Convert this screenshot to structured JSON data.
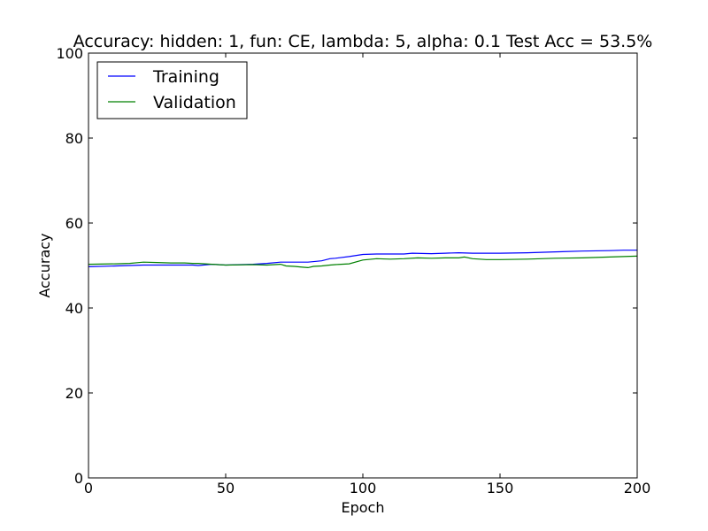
{
  "chart_data": {
    "type": "line",
    "title": "Accuracy: hidden: 1, fun: CE, lambda: 5, alpha: 0.1  Test Acc = 53.5%",
    "xlabel": "Epoch",
    "ylabel": "Accuracy",
    "xlim": [
      0,
      200
    ],
    "ylim": [
      0,
      100
    ],
    "xticks": [
      0,
      50,
      100,
      150,
      200
    ],
    "yticks": [
      0,
      20,
      40,
      60,
      80,
      100
    ],
    "grid": false,
    "legend_position": "top-left",
    "series": [
      {
        "name": "Training",
        "color": "#0000ff",
        "x": [
          0,
          10,
          20,
          30,
          38,
          40,
          45,
          50,
          60,
          65,
          70,
          75,
          80,
          85,
          88,
          90,
          95,
          100,
          105,
          110,
          115,
          118,
          125,
          130,
          135,
          140,
          150,
          160,
          170,
          180,
          190,
          195,
          200
        ],
        "y": [
          49.7,
          49.9,
          50.1,
          50.1,
          50.1,
          50.0,
          50.3,
          50.1,
          50.3,
          50.5,
          50.8,
          50.8,
          50.8,
          51.1,
          51.6,
          51.7,
          52.1,
          52.6,
          52.7,
          52.7,
          52.7,
          52.9,
          52.8,
          52.9,
          53.0,
          52.9,
          52.9,
          53.0,
          53.2,
          53.4,
          53.5,
          53.6,
          53.6
        ]
      },
      {
        "name": "Validation",
        "color": "#008000",
        "x": [
          0,
          10,
          15,
          20,
          25,
          30,
          35,
          38,
          40,
          45,
          50,
          60,
          65,
          70,
          72,
          75,
          78,
          80,
          82,
          85,
          88,
          90,
          95,
          100,
          105,
          110,
          115,
          120,
          125,
          130,
          135,
          137,
          140,
          145,
          150,
          160,
          170,
          180,
          190,
          200
        ],
        "y": [
          50.3,
          50.4,
          50.5,
          50.8,
          50.7,
          50.6,
          50.6,
          50.5,
          50.5,
          50.3,
          50.1,
          50.2,
          50.1,
          50.3,
          49.9,
          49.8,
          49.6,
          49.5,
          49.8,
          49.9,
          50.1,
          50.2,
          50.4,
          51.3,
          51.6,
          51.5,
          51.6,
          51.8,
          51.7,
          51.8,
          51.8,
          52.0,
          51.6,
          51.4,
          51.4,
          51.5,
          51.7,
          51.8,
          52.0,
          52.2
        ]
      }
    ]
  }
}
